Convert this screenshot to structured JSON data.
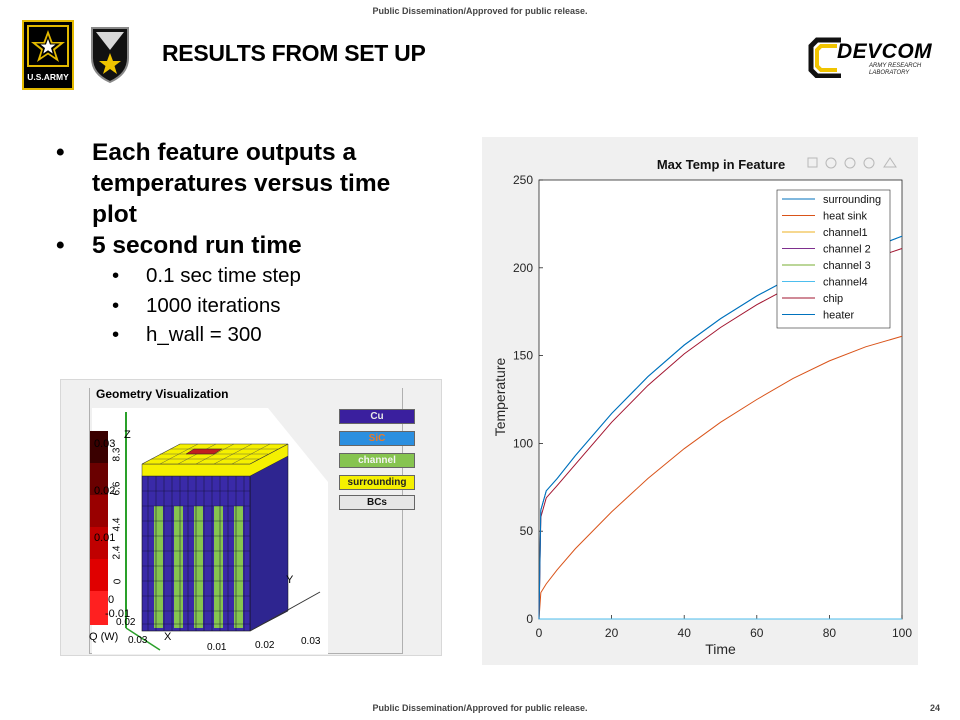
{
  "banner": {
    "top": "Public Dissemination/Approved for public release.",
    "bottom": "Public Dissemination/Approved for public release.",
    "page_number": "24"
  },
  "logos": {
    "army_text": "U.S.ARMY",
    "devcom_text": "DEVCOM",
    "devcom_subtext": "ARMY RESEARCH LABORATORY"
  },
  "slide": {
    "title": "RESULTS FROM SET UP",
    "bullets": [
      {
        "text": "Each feature outputs a temperatures versus time plot"
      },
      {
        "text": "5 second run time"
      }
    ],
    "sub_bullets": [
      "0.1 sec time step",
      "1000 iterations",
      "h_wall = 300"
    ]
  },
  "geometry": {
    "title": "Geometry Visualization",
    "legend_buttons": [
      {
        "label": "Cu",
        "color": "#3a1f9e",
        "text_color": "#e8e8e8"
      },
      {
        "label": "SiC",
        "color": "#2b8fe0",
        "text_color": "#e87a2a"
      },
      {
        "label": "channel",
        "color": "#86c450",
        "text_color": "#f4f4f4"
      },
      {
        "label": "surrounding",
        "color": "#f5f000",
        "text_color": "#222222"
      },
      {
        "label": "BCs",
        "color": "#e6e6e6",
        "text_color": "#111111"
      }
    ],
    "colorbar_label": "Q (W)",
    "colorbar_ticks": [
      "0.03",
      "0.02",
      "0.01",
      "0",
      "-0.01"
    ],
    "z_label": "Z",
    "x_label": "X",
    "y_label": "Y",
    "z_ticks": [
      "8.3",
      "6.6",
      "4.4",
      "2.4",
      "0"
    ],
    "x_ticks": [
      "0.01",
      "0.02",
      "0.03"
    ],
    "y_ticks": [
      "0.01",
      "0.02",
      "0.03"
    ],
    "bottom_zero": "0"
  },
  "chart_data": {
    "type": "line",
    "title": "Max Temp in Feature",
    "xlabel": "Time",
    "ylabel": "Temperature",
    "xlim": [
      0,
      100
    ],
    "ylim": [
      0,
      250
    ],
    "xticks": [
      0,
      20,
      40,
      60,
      80,
      100
    ],
    "yticks": [
      0,
      50,
      100,
      150,
      200,
      250
    ],
    "grid": false,
    "legend_position": "top-right",
    "series": [
      {
        "name": "surrounding",
        "color": "#0072bd",
        "x": [
          0,
          0.5,
          2,
          5,
          10,
          20,
          30,
          40,
          50,
          60,
          70,
          80,
          90,
          100
        ],
        "y": [
          0,
          62,
          73,
          80,
          93,
          117,
          138,
          156,
          171,
          184,
          195,
          203,
          210,
          218
        ]
      },
      {
        "name": "heat sink",
        "color": "#d95319",
        "x": [
          0,
          0.5,
          2,
          5,
          10,
          20,
          30,
          40,
          50,
          60,
          70,
          80,
          90,
          100
        ],
        "y": [
          0,
          15,
          20,
          28,
          40,
          61,
          80,
          97,
          112,
          125,
          137,
          147,
          155,
          161
        ]
      },
      {
        "name": "channel1",
        "color": "#edb120",
        "x": [
          0,
          100
        ],
        "y": [
          0,
          0
        ]
      },
      {
        "name": "channel 2",
        "color": "#7e2f8e",
        "x": [
          0,
          100
        ],
        "y": [
          0,
          0
        ]
      },
      {
        "name": "channel 3",
        "color": "#77ac30",
        "x": [
          0,
          100
        ],
        "y": [
          0,
          0
        ]
      },
      {
        "name": "channel4",
        "color": "#4dbeee",
        "x": [
          0,
          100
        ],
        "y": [
          0,
          0
        ]
      },
      {
        "name": "chip",
        "color": "#a2142f",
        "x": [
          0,
          0.5,
          2,
          5,
          10,
          20,
          30,
          40,
          50,
          60,
          70,
          80,
          90,
          100
        ],
        "y": [
          0,
          58,
          69,
          76,
          88,
          112,
          133,
          151,
          166,
          179,
          190,
          198,
          204,
          211
        ]
      },
      {
        "name": "heater",
        "color": "#0072bd",
        "x": [
          0,
          0.5,
          2,
          5,
          10,
          20,
          30,
          40,
          50,
          60,
          70,
          80,
          90,
          100
        ],
        "y": [
          0,
          62,
          73,
          80,
          93,
          117,
          138,
          156,
          171,
          184,
          195,
          203,
          210,
          218
        ]
      }
    ]
  }
}
